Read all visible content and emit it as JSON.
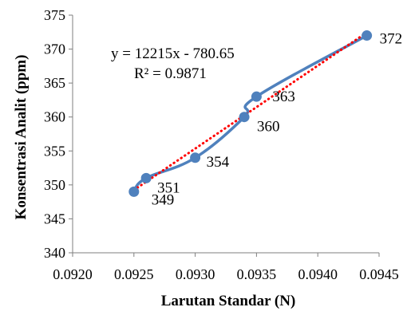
{
  "chart_data": {
    "type": "scatter",
    "xlabel": "Larutan Standar (N)",
    "ylabel": "Konsentrasi Analit (ppm)",
    "xlim": [
      0.092,
      0.0945
    ],
    "ylim": [
      340,
      375
    ],
    "x_ticks": [
      "0.0920",
      "0.0925",
      "0.0930",
      "0.0935",
      "0.0940",
      "0.0945"
    ],
    "y_ticks": [
      "340",
      "345",
      "350",
      "355",
      "360",
      "365",
      "370",
      "375"
    ],
    "x_tick_values": [
      0.092,
      0.0925,
      0.093,
      0.0935,
      0.094,
      0.0945
    ],
    "y_tick_values": [
      340,
      345,
      350,
      355,
      360,
      365,
      370,
      375
    ],
    "grid": false,
    "legend": "none",
    "series": [
      {
        "color": "#4f81bd",
        "smoothed_line": true,
        "points": [
          {
            "x": 0.0925,
            "y": 349,
            "label": "349"
          },
          {
            "x": 0.0926,
            "y": 351,
            "label": "351"
          },
          {
            "x": 0.093,
            "y": 354,
            "label": "354"
          },
          {
            "x": 0.0934,
            "y": 360,
            "label": "360"
          },
          {
            "x": 0.0935,
            "y": 363,
            "label": "363"
          },
          {
            "x": 0.0944,
            "y": 372,
            "label": "372"
          }
        ]
      }
    ],
    "trendline": {
      "type": "linear",
      "slope": 12215,
      "intercept": -780.65,
      "color": "#ff0000",
      "style": "dotted",
      "equation": "y = 12215x - 780.65",
      "r_squared": "R² = 0.9871"
    }
  }
}
